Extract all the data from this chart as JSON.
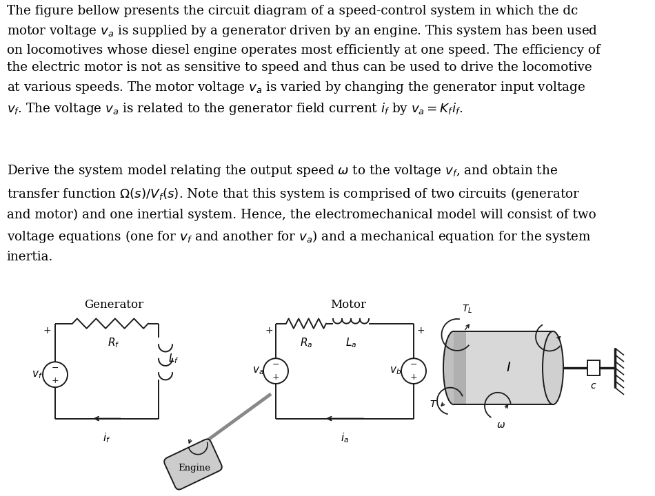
{
  "background_color": "#ffffff",
  "paragraph1": "The figure bellow presents the circuit diagram of a speed-control system in which the dc\nmotor voltage $v_a$ is supplied by a generator driven by an engine. This system has been used\non locomotives whose diesel engine operates most efficiently at one speed. The efficiency of\nthe electric motor is not as sensitive to speed and thus can be used to drive the locomotive\nat various speeds. The motor voltage $v_a$ is varied by changing the generator input voltage\n$v_f$. The voltage $v_a$ is related to the generator field current $i_f$ by $v_a = K_f i_f$.",
  "paragraph2": "Derive the system model relating the output speed $\\omega$ to the voltage $v_f$, and obtain the\ntransfer function $\\Omega(s)/V_f(s)$. Note that this system is comprised of two circuits (generator\nand motor) and one inertial system. Hence, the electromechanical model will consist of two\nvoltage equations (one for $v_f$ and another for $v_a$) and a mechanical equation for the system\ninertia.",
  "gen_label": "Generator",
  "motor_label": "Motor",
  "engine_label": "Engine"
}
